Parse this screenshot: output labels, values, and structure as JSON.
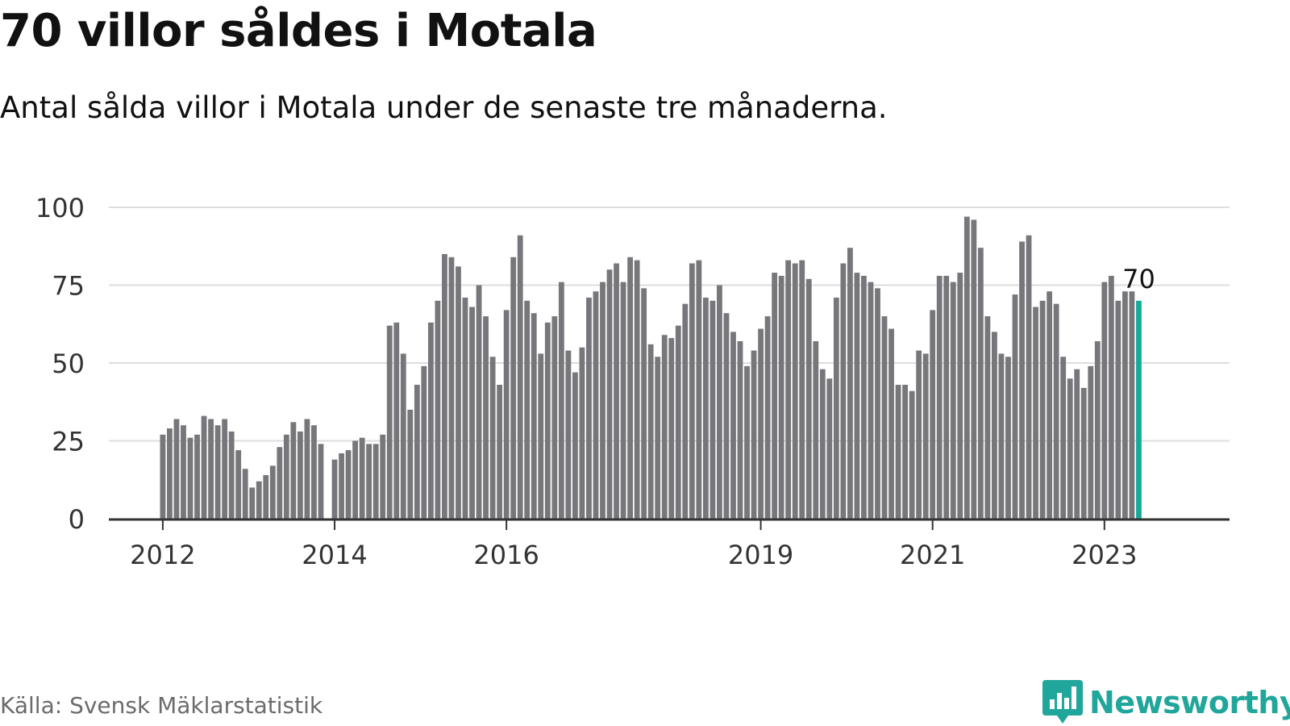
{
  "title": "70 villor såldes i Motala",
  "subtitle": "Antal sålda villor i Motala under de senaste tre månaderna.",
  "source": "Källa: Svensk Mäklarstatistik",
  "brand": {
    "name": "Newsworthy",
    "icon": "chart-bubble-icon"
  },
  "colors": {
    "bar": "#77767b",
    "highlight": "#19a99a",
    "grid": "#dddddd",
    "axis": "#333333",
    "brand": "#20a69a"
  },
  "chart_data": {
    "type": "bar",
    "ylim": [
      0,
      100
    ],
    "yticks": [
      0,
      25,
      50,
      75,
      100
    ],
    "xticks": [
      "2012",
      "2014",
      "2016",
      "2019",
      "2021",
      "2023"
    ],
    "grid": true,
    "highlight_label": "70",
    "series": [
      {
        "values": [
          27,
          29,
          32,
          30,
          26,
          27,
          33,
          32,
          30,
          32,
          28,
          22,
          16,
          10,
          12,
          14,
          17,
          23,
          27,
          31,
          28,
          32,
          30,
          24,
          null,
          19,
          21,
          22,
          25,
          26,
          24,
          24,
          27,
          62,
          63,
          53,
          35,
          43,
          49,
          63,
          70,
          85,
          84,
          81,
          71,
          68,
          75,
          65,
          52,
          43,
          67,
          84,
          91,
          70,
          66,
          53,
          63,
          65,
          76,
          54,
          47,
          55,
          71,
          73,
          76,
          80,
          82,
          76,
          84,
          83,
          74,
          56,
          52,
          59,
          58,
          62,
          69,
          82,
          83,
          71,
          70,
          75,
          66,
          60,
          57,
          49,
          54,
          61,
          65,
          79,
          78,
          83,
          82,
          83,
          77,
          57,
          48,
          45,
          71,
          82,
          87,
          79,
          78,
          76,
          74,
          65,
          61,
          43,
          43,
          41,
          54,
          53,
          67,
          78,
          78,
          76,
          79,
          97,
          96,
          87,
          65,
          60,
          53,
          52,
          72,
          89,
          91,
          68,
          70,
          73,
          69,
          52,
          45,
          48,
          42,
          49,
          57,
          76,
          78,
          70,
          73,
          73,
          70
        ]
      }
    ]
  }
}
